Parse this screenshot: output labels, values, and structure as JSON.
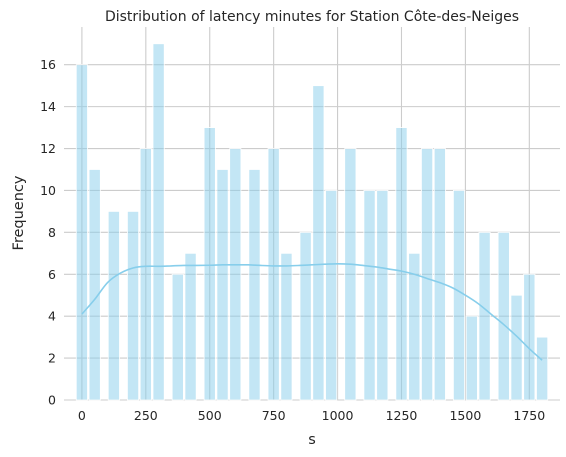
{
  "chart_data": {
    "type": "bar",
    "title": "Distribution of latency minutes for Station Côte-des-Neiges",
    "xlabel": "s",
    "ylabel": "Frequency",
    "xlim": [
      -70,
      1870
    ],
    "ylim": [
      0,
      17.8
    ],
    "xticks": [
      0,
      250,
      500,
      750,
      1000,
      1250,
      1500,
      1750
    ],
    "yticks": [
      0,
      2,
      4,
      6,
      8,
      10,
      12,
      14,
      16
    ],
    "grid": true,
    "bins": {
      "centers": [
        0,
        50,
        125,
        200,
        250,
        300,
        375,
        425,
        500,
        550,
        600,
        675,
        750,
        800,
        875,
        925,
        975,
        1050,
        1125,
        1175,
        1250,
        1300,
        1350,
        1400,
        1475,
        1525,
        1575,
        1650,
        1700,
        1750,
        1800
      ],
      "counts": [
        16,
        11,
        9,
        9,
        12,
        17,
        6,
        7,
        13,
        11,
        12,
        11,
        12,
        7,
        8,
        15,
        10,
        12,
        10,
        10,
        13,
        7,
        12,
        12,
        10,
        4,
        8,
        8,
        5,
        6,
        3
      ]
    },
    "kde": {
      "x": [
        0,
        50,
        100,
        150,
        200,
        250,
        300,
        350,
        400,
        450,
        500,
        550,
        600,
        650,
        700,
        750,
        800,
        850,
        900,
        950,
        1000,
        1050,
        1100,
        1150,
        1200,
        1250,
        1300,
        1350,
        1400,
        1450,
        1500,
        1550,
        1600,
        1650,
        1700,
        1750,
        1800
      ],
      "y": [
        4.1,
        4.8,
        5.6,
        6.05,
        6.3,
        6.38,
        6.38,
        6.4,
        6.42,
        6.42,
        6.43,
        6.45,
        6.45,
        6.45,
        6.42,
        6.4,
        6.4,
        6.42,
        6.45,
        6.48,
        6.5,
        6.48,
        6.42,
        6.35,
        6.25,
        6.15,
        6.0,
        5.8,
        5.6,
        5.35,
        5.0,
        4.6,
        4.1,
        3.6,
        3.05,
        2.45,
        1.9
      ]
    },
    "bar_color": "#87ceeb",
    "line_color": "#87ceeb",
    "grid_color": "#cccccc",
    "background": "#ffffff"
  }
}
